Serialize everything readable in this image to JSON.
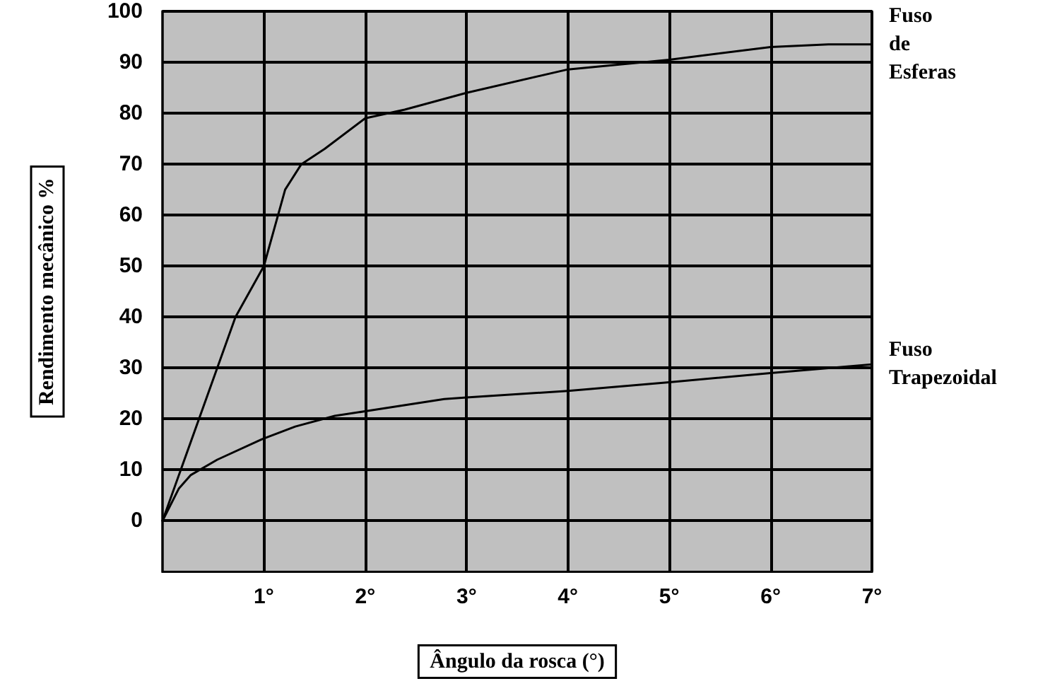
{
  "chart_data": {
    "type": "line",
    "xlabel": "Ângulo da rosca (°)",
    "ylabel": "Rendimento mecânico %",
    "xlim": [
      0,
      7
    ],
    "xticks": [
      {
        "value": 1,
        "label": "1°"
      },
      {
        "value": 2,
        "label": "2°"
      },
      {
        "value": 3,
        "label": "3°"
      },
      {
        "value": 4,
        "label": "4°"
      },
      {
        "value": 5,
        "label": "5°"
      },
      {
        "value": 6,
        "label": "6°"
      },
      {
        "value": 7,
        "label": "7°"
      }
    ],
    "ylim": [
      -10,
      100
    ],
    "yticks": [
      0,
      10,
      20,
      30,
      40,
      50,
      60,
      70,
      80,
      90,
      100
    ],
    "grid": true,
    "legend": false,
    "marker": "none",
    "line_style": "solid",
    "series": [
      {
        "name": "Fuso de Esferas",
        "color": "#000000",
        "x": [
          0,
          0.72,
          1.0,
          1.21,
          1.37,
          1.6,
          2.0,
          2.39,
          3,
          4,
          5,
          6,
          6.57,
          7
        ],
        "values": [
          0,
          40,
          50,
          65,
          70,
          73,
          79,
          80.7,
          84,
          88.6,
          90.5,
          93,
          93.5,
          93.5
        ]
      },
      {
        "name": "Fuso Trapezoidal",
        "color": "#000000",
        "x": [
          0,
          0.16,
          0.28,
          0.54,
          0.98,
          1.31,
          1.7,
          2.0,
          2.78,
          3,
          4,
          5,
          6,
          7
        ],
        "values": [
          0,
          6.3,
          9,
          12,
          16,
          18.5,
          20.6,
          21.5,
          23.9,
          24.2,
          25.5,
          27.2,
          29,
          30.7
        ]
      }
    ]
  }
}
